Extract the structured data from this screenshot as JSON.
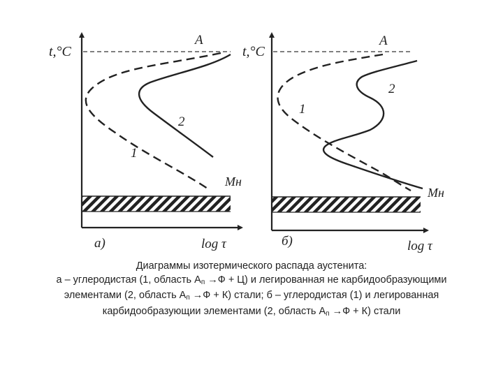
{
  "panels": [
    {
      "y_axis_label": "t,°C",
      "x_axis_label": "log τ",
      "top_line_label": "A",
      "ms_label": "Mн",
      "panel_label": "а)",
      "curve_label_1": "1",
      "curve_label_2": "2"
    },
    {
      "y_axis_label": "t,°C",
      "x_axis_label": "log τ",
      "top_line_label": "A",
      "ms_label": "Mн",
      "panel_label": "б)",
      "curve_label_1": "1",
      "curve_label_2": "2"
    }
  ],
  "caption": {
    "title": "Диаграммы изотермического распада аустенита:",
    "l2_a": "а – углеродистая (1, область А",
    "l2_sub": "п",
    "l2_b": " →Ф + Ц) и легированная не карбидообразующими",
    "l3_a": "элементами (2, область А",
    "l3_sub": "п",
    "l3_b": " →Ф + К) стали; б – углеродистая (1) и легированная",
    "l4_a": "карбидообразующии элементами (2, область А",
    "l4_sub": "п",
    "l4_b": " →Ф + К) стали"
  }
}
